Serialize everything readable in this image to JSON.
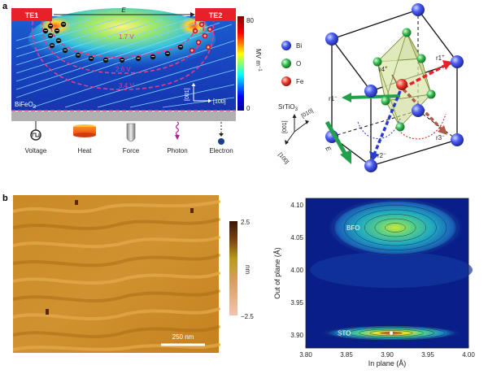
{
  "panel_a": {
    "letter": "a",
    "electrode_left": "TE1",
    "electrode_right": "TE2",
    "field_label": "E",
    "film_label": "BiFeO3",
    "film_label_main": "BiFeO",
    "film_label_sub": "3",
    "contours": [
      "1.7 V",
      "2.6 V",
      "3.4 V"
    ],
    "colorbar": {
      "max": "80",
      "min": "0",
      "unit": "MV m",
      "unit_sup": "−1"
    },
    "axis_up": "[001]",
    "axis_right": "[100]",
    "stimuli": [
      "Voltage",
      "Heat",
      "Force",
      "Photon",
      "Electron"
    ],
    "colors": {
      "electrode": "#e8202a",
      "field_lines": "#66ccff",
      "contour": "#e63c8c",
      "substrate": "#b0b0b0"
    }
  },
  "panel_a_right": {
    "legend": [
      {
        "label": "Bi",
        "color": "#3e4fe0"
      },
      {
        "label": "O",
        "color": "#2fb24a"
      },
      {
        "label": "Fe",
        "color": "#e82020"
      }
    ],
    "substrate_main": "SrTiO",
    "substrate_sub": "3",
    "dirs": [
      "[001]",
      "[010]",
      "[100]"
    ],
    "field_label": "E",
    "vectors": [
      "r1+",
      "r1−",
      "r2−",
      "r3−",
      "r4+"
    ],
    "vector_labels": {
      "r1p": "r1",
      "r1p_sup": "+",
      "r1m": "r1",
      "r1m_sup": "−",
      "r2m": "r2",
      "r2m_sup": "−",
      "r3m": "r3",
      "r3m_sup": "−",
      "r4p": "r4",
      "r4p_sup": "+"
    }
  },
  "panel_b": {
    "letter": "b",
    "afm": {
      "scale_bar": "250 nm",
      "colorbar_max": "2.5",
      "colorbar_min": "−2.5",
      "colorbar_unit": "nm"
    }
  },
  "chart_data": {
    "type": "heatmap",
    "title": "",
    "xlabel": "In plane (Å)",
    "ylabel": "Out of plane (Å)",
    "xlim": [
      3.8,
      4.0
    ],
    "ylim": [
      3.88,
      4.11
    ],
    "x_ticks": [
      "3.80",
      "3.85",
      "3.90",
      "3.95",
      "4.00"
    ],
    "y_ticks": [
      "3.90",
      "3.95",
      "4.00",
      "4.05",
      "4.10"
    ],
    "x_tick_values": [
      3.8,
      3.85,
      3.9,
      3.95,
      4.0
    ],
    "y_tick_values": [
      3.9,
      3.95,
      4.0,
      4.05,
      4.1
    ],
    "peaks": [
      {
        "label": "BFO",
        "x": 3.91,
        "y": 4.065
      },
      {
        "label": "STO",
        "x": 3.905,
        "y": 3.903
      }
    ],
    "grid": false
  }
}
